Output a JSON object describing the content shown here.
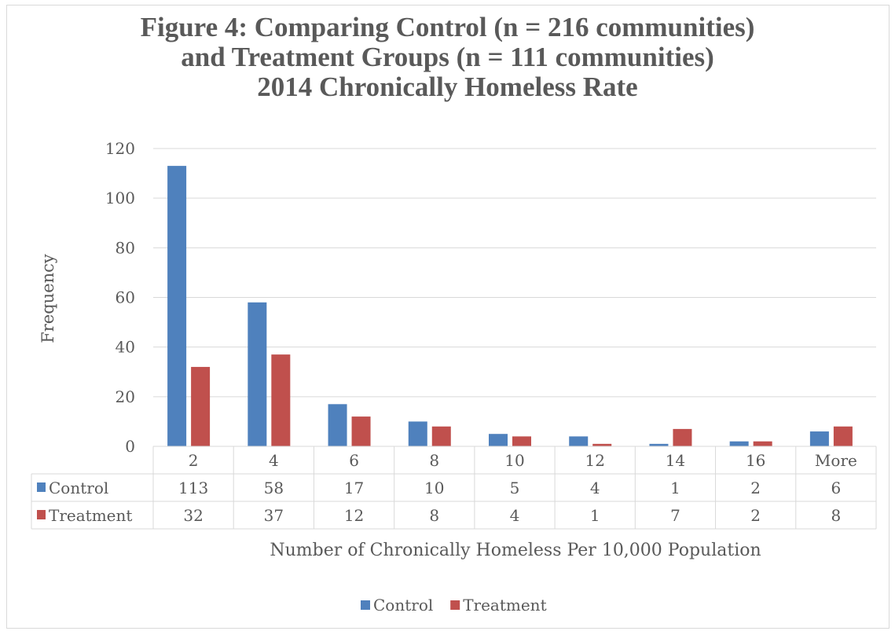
{
  "chart_data": {
    "type": "bar",
    "title_lines": [
      "Figure 4: Comparing Control (n = 216 communities)",
      "and Treatment Groups (n = 111 communities)",
      "2014 Chronically Homeless Rate"
    ],
    "xlabel": "Number of Chronically Homeless Per 10,000 Population",
    "ylabel": "Frequency",
    "ylim": [
      0,
      120
    ],
    "yticks": [
      0,
      20,
      40,
      60,
      80,
      100,
      120
    ],
    "categories": [
      "2",
      "4",
      "6",
      "8",
      "10",
      "12",
      "14",
      "16",
      "More"
    ],
    "series": [
      {
        "name": "Control",
        "color": "#4f81bd",
        "values": [
          113,
          58,
          17,
          10,
          5,
          4,
          1,
          2,
          6
        ]
      },
      {
        "name": "Treatment",
        "color": "#c0504d",
        "values": [
          32,
          37,
          12,
          8,
          4,
          1,
          7,
          2,
          8
        ]
      }
    ],
    "grid": true,
    "legend_position": "bottom",
    "data_table": true
  }
}
